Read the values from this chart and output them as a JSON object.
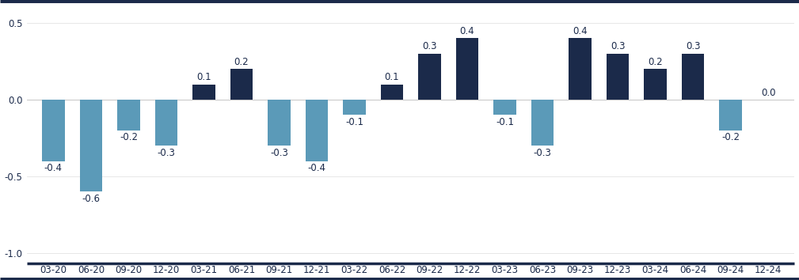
{
  "categories": [
    "03-20",
    "06-20",
    "09-20",
    "12-20",
    "03-21",
    "06-21",
    "09-21",
    "12-21",
    "03-22",
    "06-22",
    "09-22",
    "12-22",
    "03-23",
    "06-23",
    "09-23",
    "12-23",
    "03-24",
    "06-24",
    "09-24",
    "12-24"
  ],
  "values": [
    -0.4,
    -0.6,
    -0.2,
    -0.3,
    0.1,
    0.2,
    -0.3,
    -0.4,
    -0.1,
    0.1,
    0.3,
    0.4,
    -0.1,
    -0.3,
    0.4,
    0.3,
    0.2,
    0.3,
    -0.2,
    0.0
  ],
  "bar_colors_positive": "#1b2a4a",
  "bar_colors_negative": "#5b9ab8",
  "ylim": [
    -1.05,
    0.62
  ],
  "yticks": [
    -1.0,
    -0.5,
    0.0,
    0.5
  ],
  "ytick_labels": [
    "-1.0",
    "-0.5",
    "0.0",
    "0.5"
  ],
  "border_color": "#1b2a4a",
  "label_color": "#1b2a4a",
  "background_color": "#ffffff",
  "label_fontsize": 8.5,
  "tick_fontsize": 8.5,
  "bar_width": 0.6
}
